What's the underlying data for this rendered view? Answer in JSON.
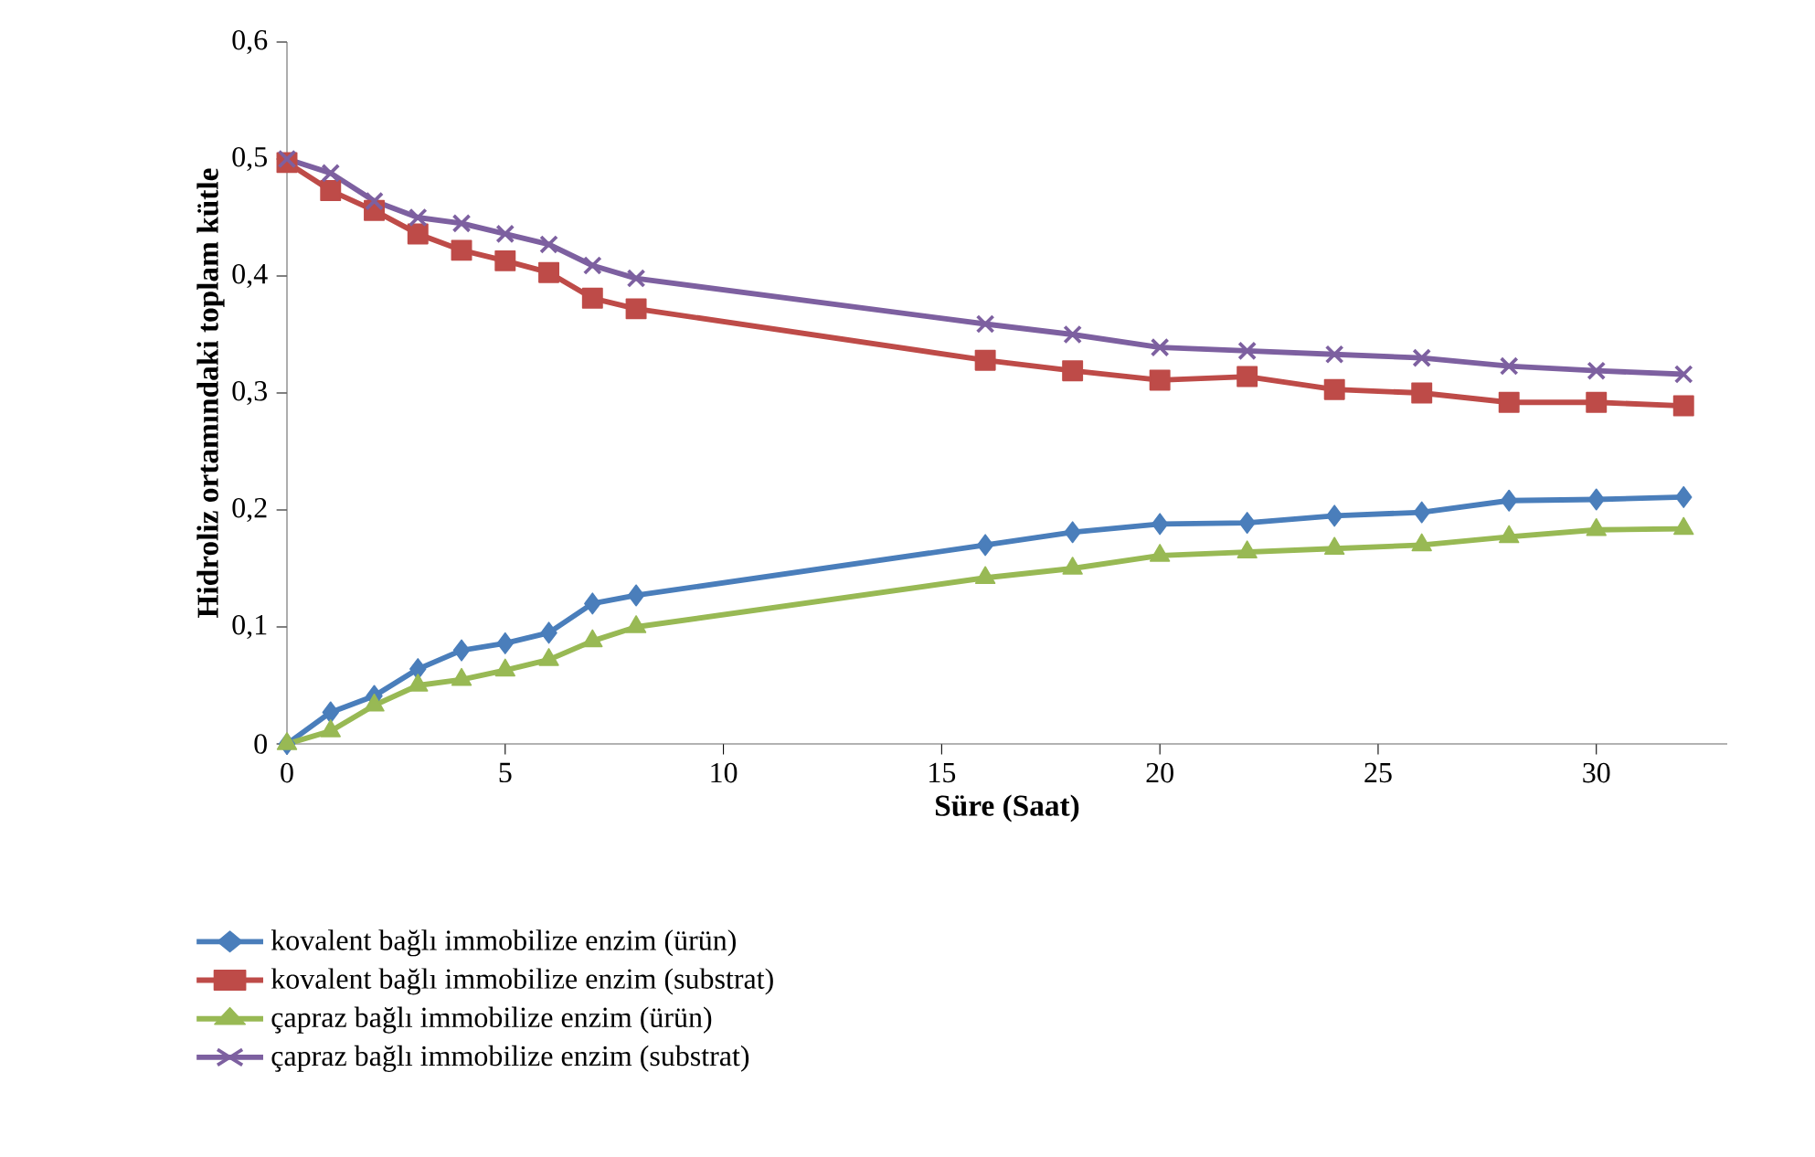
{
  "chart_data": {
    "type": "line",
    "xlabel": "Süre (Saat)",
    "ylabel": "Hidroliz ortamındaki toplam kütle",
    "x": [
      0,
      1,
      2,
      3,
      4,
      5,
      6,
      7,
      8,
      16,
      18,
      20,
      22,
      24,
      26,
      28,
      30,
      32
    ],
    "xlim": [
      0,
      33
    ],
    "xticks": [
      0,
      5,
      10,
      15,
      20,
      25,
      30
    ],
    "ylim": [
      0,
      0.6
    ],
    "yticks": [
      0,
      {
        "value": 0.1,
        "label": "0,1"
      },
      {
        "value": 0.2,
        "label": "0,2"
      },
      {
        "value": 0.3,
        "label": "0,3"
      },
      {
        "value": 0.4,
        "label": "0,4"
      },
      {
        "value": 0.5,
        "label": "0,5"
      },
      {
        "value": 0.6,
        "label": "0,6"
      }
    ],
    "grid": false,
    "legend": "bottom",
    "series": [
      {
        "name": "kovalent bağlı immobilize enzim (ürün)",
        "color": "#4a7ebb",
        "marker": "diamond",
        "values": [
          0,
          0.027,
          0.041,
          0.064,
          0.08,
          0.086,
          0.095,
          0.12,
          0.127,
          0.17,
          0.181,
          0.188,
          0.189,
          0.195,
          0.198,
          0.208,
          0.209,
          0.211
        ]
      },
      {
        "name": "kovalent bağlı immobilize enzim (substrat)",
        "color": "#be4b48",
        "marker": "square",
        "values": [
          0.497,
          0.473,
          0.456,
          0.436,
          0.422,
          0.413,
          0.403,
          0.381,
          0.372,
          0.328,
          0.319,
          0.311,
          0.314,
          0.303,
          0.3,
          0.292,
          0.292,
          0.289
        ]
      },
      {
        "name": "çapraz bağlı immobilize enzim (ürün)",
        "color": "#98b954",
        "marker": "triangle",
        "values": [
          0,
          0.011,
          0.033,
          0.05,
          0.055,
          0.063,
          0.072,
          0.088,
          0.1,
          0.142,
          0.15,
          0.161,
          0.164,
          0.167,
          0.17,
          0.177,
          0.183,
          0.184
        ]
      },
      {
        "name": "çapraz bağlı immobilize enzim (substrat)",
        "color": "#7d60a0",
        "marker": "cross",
        "values": [
          0.5,
          0.488,
          0.464,
          0.45,
          0.445,
          0.436,
          0.427,
          0.409,
          0.398,
          0.359,
          0.35,
          0.339,
          0.336,
          0.333,
          0.33,
          0.323,
          0.319,
          0.316
        ]
      }
    ]
  }
}
